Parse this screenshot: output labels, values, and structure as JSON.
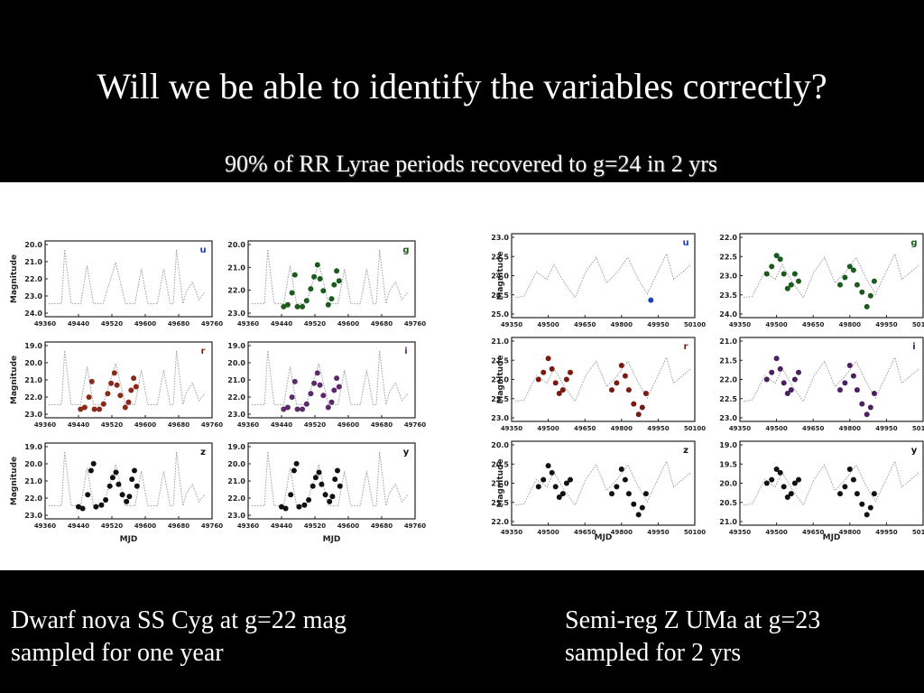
{
  "slide": {
    "title": "Will we be able to identify the variables correctly?",
    "subtitle": "90% of RR Lyrae periods recovered to g=24 in 2 yrs",
    "caption_left": [
      "Dwarf nova SS Cyg at g=22 mag",
      "sampled for one year"
    ],
    "caption_right": [
      "Semi-reg Z UMa at g=23",
      "sampled for 2 yrs"
    ]
  },
  "chart_data": [
    {
      "type": "scatter",
      "object": "Dwarf nova SS Cyg",
      "xlabel": "MJD",
      "ylabel": "Magnitude",
      "xlim": [
        49360,
        49760
      ],
      "xticks": [
        "49360",
        "49440",
        "49520",
        "49600",
        "49680",
        "49760"
      ],
      "panels": [
        {
          "band": "u",
          "color": "#1f3fbf",
          "yticks": [
            "20.0",
            "21.0",
            "22.0",
            "23.0",
            "24.0"
          ],
          "ylim": [
            24.0,
            20.0
          ],
          "points": []
        },
        {
          "band": "g",
          "color": "#1d5a1d",
          "yticks": [
            "20.0",
            "21.0",
            "22.0",
            "23.0"
          ],
          "ylim": [
            23.4,
            19.6
          ],
          "points": [
            [
              49445,
              22.9
            ],
            [
              49455,
              22.8
            ],
            [
              49465,
              22.2
            ],
            [
              49472,
              21.3
            ],
            [
              49478,
              22.9
            ],
            [
              49490,
              22.9
            ],
            [
              49500,
              22.6
            ],
            [
              49510,
              22.0
            ],
            [
              49518,
              21.4
            ],
            [
              49526,
              20.8
            ],
            [
              49532,
              21.5
            ],
            [
              49540,
              22.1
            ],
            [
              49552,
              22.8
            ],
            [
              49560,
              22.5
            ],
            [
              49566,
              21.8
            ],
            [
              49572,
              21.1
            ],
            [
              49578,
              21.6
            ]
          ]
        },
        {
          "band": "r",
          "color": "#8a2a1a",
          "yticks": [
            "19.0",
            "20.0",
            "21.0",
            "22.0",
            "23.0"
          ],
          "ylim": [
            23.4,
            19.0
          ],
          "points": [
            [
              49445,
              22.9
            ],
            [
              49455,
              22.8
            ],
            [
              49465,
              22.2
            ],
            [
              49472,
              21.3
            ],
            [
              49478,
              22.9
            ],
            [
              49490,
              22.9
            ],
            [
              49500,
              22.6
            ],
            [
              49510,
              22.0
            ],
            [
              49518,
              21.4
            ],
            [
              49526,
              20.8
            ],
            [
              49532,
              21.5
            ],
            [
              49540,
              22.1
            ],
            [
              49552,
              22.8
            ],
            [
              49560,
              22.5
            ],
            [
              49566,
              21.8
            ],
            [
              49572,
              21.1
            ],
            [
              49578,
              21.6
            ]
          ]
        },
        {
          "band": "i",
          "color": "#5a2a6a",
          "yticks": [
            "19.0",
            "20.0",
            "21.0",
            "22.0",
            "23.0"
          ],
          "ylim": [
            23.4,
            19.0
          ],
          "points": [
            [
              49445,
              22.9
            ],
            [
              49455,
              22.8
            ],
            [
              49465,
              22.2
            ],
            [
              49472,
              21.3
            ],
            [
              49478,
              22.9
            ],
            [
              49490,
              22.9
            ],
            [
              49500,
              22.6
            ],
            [
              49510,
              22.0
            ],
            [
              49518,
              21.4
            ],
            [
              49526,
              20.8
            ],
            [
              49532,
              21.5
            ],
            [
              49540,
              22.1
            ],
            [
              49552,
              22.8
            ],
            [
              49560,
              22.5
            ],
            [
              49566,
              21.8
            ],
            [
              49572,
              21.1
            ],
            [
              49578,
              21.6
            ]
          ]
        },
        {
          "band": "z",
          "color": "#111111",
          "yticks": [
            "19.0",
            "20.0",
            "21.0",
            "22.0",
            "23.0"
          ],
          "ylim": [
            23.2,
            18.8
          ],
          "points": [
            [
              49440,
              22.5
            ],
            [
              49450,
              22.6
            ],
            [
              49462,
              21.8
            ],
            [
              49470,
              20.4
            ],
            [
              49476,
              20.0
            ],
            [
              49482,
              22.5
            ],
            [
              49495,
              22.4
            ],
            [
              49505,
              22.1
            ],
            [
              49515,
              21.3
            ],
            [
              49522,
              20.8
            ],
            [
              49530,
              20.5
            ],
            [
              49536,
              21.2
            ],
            [
              49545,
              21.8
            ],
            [
              49555,
              22.2
            ],
            [
              49562,
              21.9
            ],
            [
              49568,
              20.9
            ],
            [
              49574,
              20.4
            ],
            [
              49580,
              21.3
            ]
          ]
        },
        {
          "band": "y",
          "color": "#111111",
          "yticks": [
            "19.0",
            "20.0",
            "21.0",
            "22.0",
            "23.0"
          ],
          "ylim": [
            23.2,
            18.8
          ],
          "points": [
            [
              49440,
              22.5
            ],
            [
              49450,
              22.6
            ],
            [
              49462,
              21.8
            ],
            [
              49470,
              20.4
            ],
            [
              49476,
              20.0
            ],
            [
              49482,
              22.5
            ],
            [
              49495,
              22.4
            ],
            [
              49505,
              22.1
            ],
            [
              49515,
              21.3
            ],
            [
              49522,
              20.8
            ],
            [
              49530,
              20.5
            ],
            [
              49536,
              21.2
            ],
            [
              49545,
              21.8
            ],
            [
              49555,
              22.2
            ],
            [
              49562,
              21.9
            ],
            [
              49568,
              20.9
            ],
            [
              49574,
              20.4
            ],
            [
              49580,
              21.3
            ]
          ]
        }
      ]
    },
    {
      "type": "scatter",
      "object": "Semi-reg Z UMa",
      "xlabel": "MJD",
      "ylabel": "Magnitude",
      "xlim": [
        49350,
        50100
      ],
      "xticks": [
        "49350",
        "49500",
        "49650",
        "49800",
        "49950",
        "50100"
      ],
      "panels": [
        {
          "band": "u",
          "color": "#1f3fbf",
          "yticks": [
            "23.0",
            "23.5",
            "24.0",
            "24.5",
            "25.0"
          ],
          "ylim": [
            25.3,
            22.9
          ],
          "points": [
            [
              49920,
              24.8
            ]
          ]
        },
        {
          "band": "g",
          "color": "#1d5a1d",
          "yticks": [
            "22.0",
            "22.5",
            "23.0",
            "23.5",
            "24.0"
          ],
          "ylim": [
            24.2,
            21.9
          ],
          "points": [
            [
              49460,
              23.0
            ],
            [
              49480,
              22.8
            ],
            [
              49500,
              22.5
            ],
            [
              49515,
              22.6
            ],
            [
              49530,
              23.0
            ],
            [
              49545,
              23.4
            ],
            [
              49560,
              23.3
            ],
            [
              49575,
              23.0
            ],
            [
              49590,
              23.2
            ],
            [
              49760,
              23.3
            ],
            [
              49780,
              23.1
            ],
            [
              49800,
              22.8
            ],
            [
              49815,
              22.9
            ],
            [
              49830,
              23.3
            ],
            [
              49850,
              23.5
            ],
            [
              49870,
              23.9
            ],
            [
              49885,
              23.6
            ],
            [
              49900,
              23.2
            ]
          ]
        },
        {
          "band": "r",
          "color": "#7a1a10",
          "yticks": [
            "21.0",
            "21.5",
            "22.0",
            "22.5",
            "23.0"
          ],
          "ylim": [
            23.2,
            20.8
          ],
          "points": [
            [
              49460,
              22.0
            ],
            [
              49480,
              21.8
            ],
            [
              49500,
              21.4
            ],
            [
              49515,
              21.7
            ],
            [
              49530,
              22.1
            ],
            [
              49545,
              22.4
            ],
            [
              49560,
              22.3
            ],
            [
              49575,
              22.0
            ],
            [
              49590,
              21.8
            ],
            [
              49760,
              22.3
            ],
            [
              49780,
              22.1
            ],
            [
              49800,
              21.6
            ],
            [
              49815,
              21.9
            ],
            [
              49830,
              22.3
            ],
            [
              49850,
              22.7
            ],
            [
              49870,
              23.0
            ],
            [
              49885,
              22.8
            ],
            [
              49900,
              22.4
            ]
          ]
        },
        {
          "band": "i",
          "color": "#4a2060",
          "yticks": [
            "21.0",
            "21.5",
            "22.0",
            "22.5",
            "23.0"
          ],
          "ylim": [
            23.2,
            20.8
          ],
          "points": [
            [
              49460,
              22.0
            ],
            [
              49480,
              21.8
            ],
            [
              49500,
              21.4
            ],
            [
              49515,
              21.7
            ],
            [
              49530,
              22.1
            ],
            [
              49545,
              22.4
            ],
            [
              49560,
              22.3
            ],
            [
              49575,
              22.0
            ],
            [
              49590,
              21.8
            ],
            [
              49760,
              22.3
            ],
            [
              49780,
              22.1
            ],
            [
              49800,
              21.6
            ],
            [
              49815,
              21.9
            ],
            [
              49830,
              22.3
            ],
            [
              49850,
              22.7
            ],
            [
              49870,
              23.0
            ],
            [
              49885,
              22.8
            ],
            [
              49900,
              22.4
            ]
          ]
        },
        {
          "band": "z",
          "color": "#111111",
          "yticks": [
            "20.0",
            "20.5",
            "21.0",
            "21.5",
            "22.0"
          ],
          "ylim": [
            22.2,
            19.8
          ],
          "points": [
            [
              49460,
              21.1
            ],
            [
              49480,
              20.9
            ],
            [
              49500,
              20.5
            ],
            [
              49515,
              20.7
            ],
            [
              49530,
              21.1
            ],
            [
              49545,
              21.4
            ],
            [
              49560,
              21.3
            ],
            [
              49575,
              21.0
            ],
            [
              49590,
              20.9
            ],
            [
              49760,
              21.3
            ],
            [
              49780,
              21.1
            ],
            [
              49800,
              20.6
            ],
            [
              49815,
              20.9
            ],
            [
              49830,
              21.3
            ],
            [
              49850,
              21.6
            ],
            [
              49870,
              21.9
            ],
            [
              49885,
              21.7
            ],
            [
              49900,
              21.3
            ]
          ]
        },
        {
          "band": "y",
          "color": "#111111",
          "yticks": [
            "19.0",
            "19.5",
            "20.0",
            "20.5",
            "21.0"
          ],
          "ylim": [
            21.2,
            18.8
          ],
          "points": [
            [
              49460,
              20.0
            ],
            [
              49480,
              19.9
            ],
            [
              49500,
              19.6
            ],
            [
              49515,
              19.7
            ],
            [
              49530,
              20.1
            ],
            [
              49545,
              20.4
            ],
            [
              49560,
              20.3
            ],
            [
              49575,
              20.0
            ],
            [
              49590,
              19.9
            ],
            [
              49760,
              20.3
            ],
            [
              49780,
              20.1
            ],
            [
              49800,
              19.6
            ],
            [
              49815,
              19.9
            ],
            [
              49830,
              20.3
            ],
            [
              49850,
              20.6
            ],
            [
              49870,
              20.9
            ],
            [
              49885,
              20.7
            ],
            [
              49900,
              20.3
            ]
          ]
        }
      ]
    }
  ]
}
